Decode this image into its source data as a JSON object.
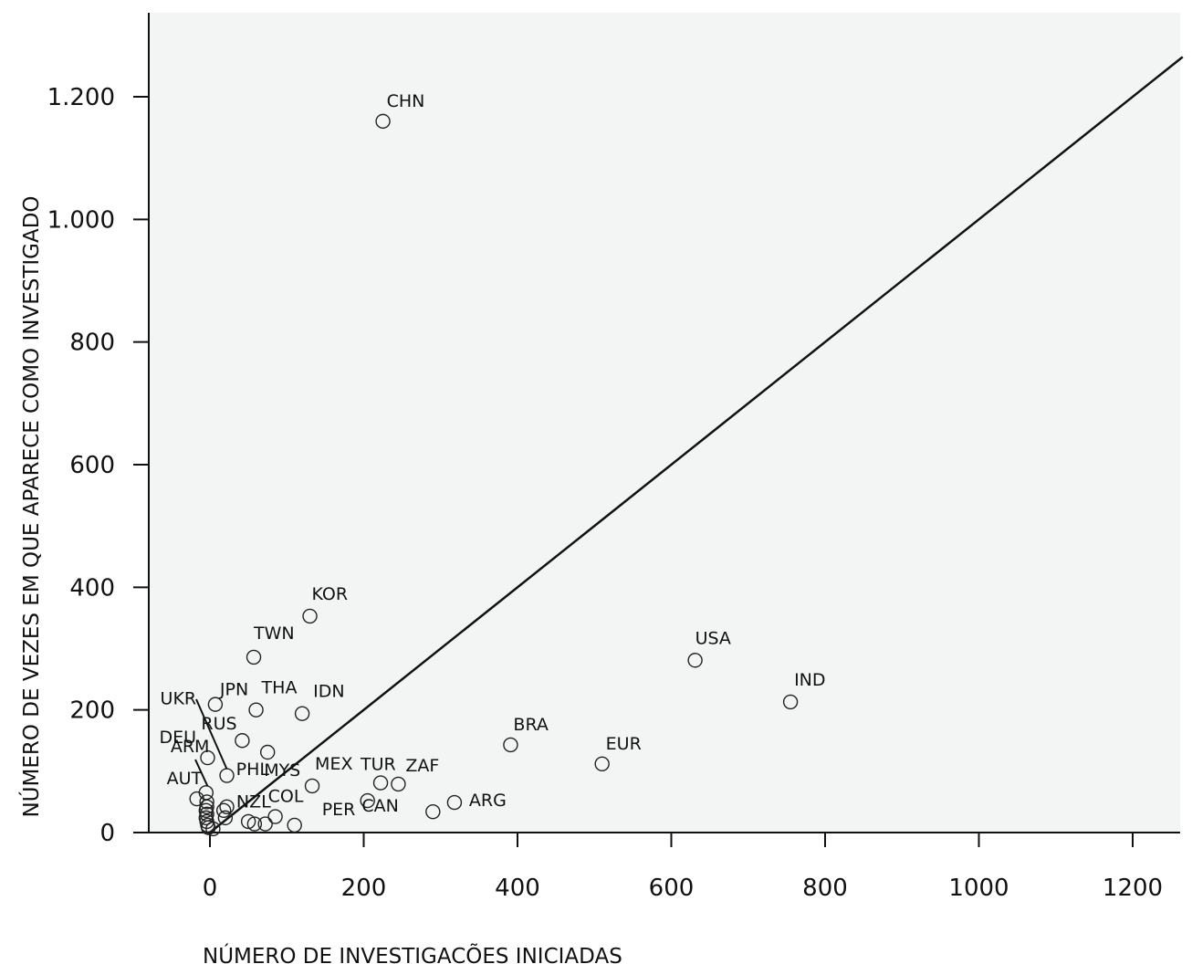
{
  "chart_data": {
    "type": "scatter",
    "title": "",
    "xlabel": "NÚMERO DE INVESTIGACÕES INICIADAS",
    "ylabel": "NÚMERO DE VEZES EM QUE APARECE COMO INVESTIGADO",
    "xlim": [
      -80,
      1265
    ],
    "ylim": [
      0,
      1200
    ],
    "xticks": [
      0,
      200,
      400,
      600,
      800,
      1000,
      1200
    ],
    "xtick_labels": [
      "0",
      "200",
      "400",
      "600",
      "800",
      "1000",
      "1200"
    ],
    "yticks": [
      0,
      200,
      400,
      600,
      800,
      1000,
      1200
    ],
    "ytick_labels": [
      "0",
      "200",
      "400",
      "600",
      "800",
      "1.000",
      "1.200"
    ],
    "grid": false,
    "legend": "none",
    "colors": {
      "plot_background": "#f3f5f4",
      "marker_stroke": "#222222",
      "line": "#111111"
    },
    "reference_line": {
      "x": [
        0,
        1265
      ],
      "y": [
        0,
        1265
      ]
    },
    "labeled_points": [
      {
        "label": "CHN",
        "x": 225,
        "y": 1160
      },
      {
        "label": "KOR",
        "x": 130,
        "y": 353
      },
      {
        "label": "TWN",
        "x": 57,
        "y": 286
      },
      {
        "label": "USA",
        "x": 631,
        "y": 281
      },
      {
        "label": "IND",
        "x": 755,
        "y": 213
      },
      {
        "label": "JPN",
        "x": 7,
        "y": 209
      },
      {
        "label": "THA",
        "x": 60,
        "y": 200
      },
      {
        "label": "IDN",
        "x": 120,
        "y": 194
      },
      {
        "label": "RUS",
        "x": 42,
        "y": 150
      },
      {
        "label": "BRA",
        "x": 391,
        "y": 143
      },
      {
        "label": "MYS",
        "x": 75,
        "y": 131
      },
      {
        "label": "DEU",
        "x": -3,
        "y": 122
      },
      {
        "label": "EUR",
        "x": 510,
        "y": 112
      },
      {
        "label": "UKR",
        "x": 22,
        "y": 93
      },
      {
        "label": "ZAF",
        "x": 245,
        "y": 79
      },
      {
        "label": "TUR",
        "x": 222,
        "y": 81
      },
      {
        "label": "MEX",
        "x": 133,
        "y": 76
      },
      {
        "label": "PER",
        "x": 205,
        "y": 52
      },
      {
        "label": "ARG",
        "x": 318,
        "y": 49
      },
      {
        "label": "CAN",
        "x": 290,
        "y": 34
      },
      {
        "label": "COL",
        "x": 85,
        "y": 26
      },
      {
        "label": "NZL",
        "x": 58,
        "y": 14
      },
      {
        "label": "AUT",
        "x": -17,
        "y": 55
      },
      {
        "label": "ARM",
        "x": 20,
        "y": 24
      },
      {
        "label": "PHL",
        "x": 110,
        "y": 12
      }
    ],
    "unlabeled_points": [
      {
        "x": -5,
        "y": 65
      },
      {
        "x": -4,
        "y": 50
      },
      {
        "x": -4,
        "y": 42
      },
      {
        "x": -5,
        "y": 36
      },
      {
        "x": -4,
        "y": 30
      },
      {
        "x": -5,
        "y": 24
      },
      {
        "x": -4,
        "y": 18
      },
      {
        "x": -3,
        "y": 12
      },
      {
        "x": -2,
        "y": 8
      },
      {
        "x": 4,
        "y": 6
      },
      {
        "x": 18,
        "y": 36
      },
      {
        "x": 22,
        "y": 42
      },
      {
        "x": 50,
        "y": 18
      },
      {
        "x": 72,
        "y": 14
      }
    ]
  }
}
